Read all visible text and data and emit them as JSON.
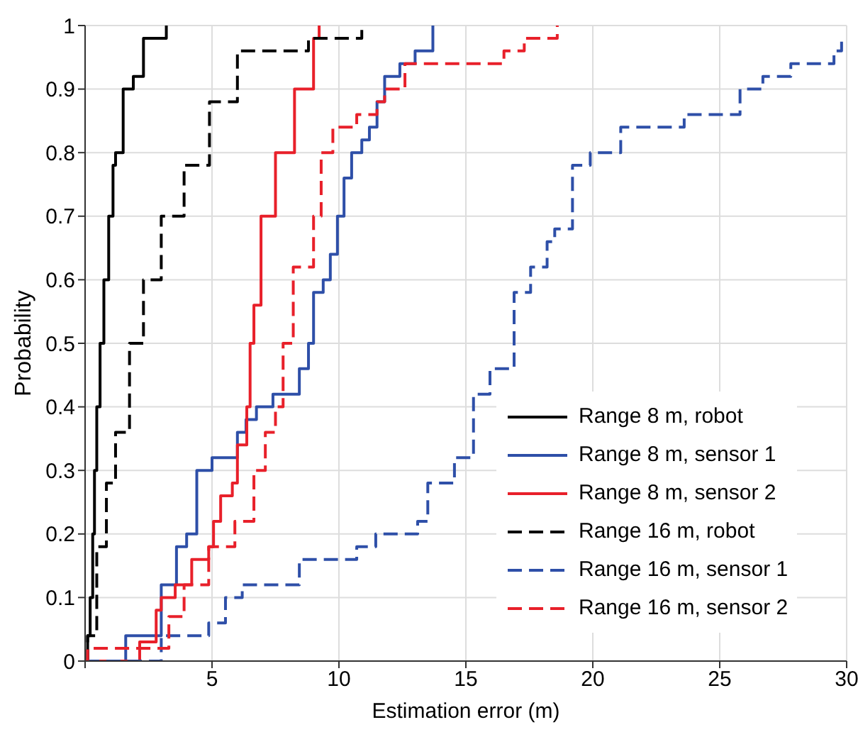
{
  "chart_data": {
    "type": "step",
    "xlabel": "Estimation error (m)",
    "ylabel": "Probability",
    "xlim": [
      0,
      30
    ],
    "ylim": [
      0,
      1
    ],
    "xticks": [
      {
        "value": 0,
        "label": null
      },
      5,
      10,
      15,
      20,
      25,
      30
    ],
    "yticks": [
      0,
      0.1,
      0.2,
      0.3,
      0.4,
      0.5,
      0.6,
      0.7,
      0.8,
      0.9,
      1
    ],
    "grid": true,
    "legend": "bottom right",
    "marker": "none",
    "series": [
      {
        "name": "Range 8 m, robot",
        "color": "#000000",
        "line_style": "solid",
        "x": [
          0,
          0.1,
          0.2,
          0.3,
          0.37,
          0.46,
          0.59,
          0.74,
          0.93,
          1.1,
          1.2,
          1.5,
          1.9,
          2.3,
          3.2
        ],
        "values": [
          0,
          0.04,
          0.1,
          0.2,
          0.3,
          0.4,
          0.5,
          0.6,
          0.7,
          0.78,
          0.8,
          0.9,
          0.92,
          0.98,
          1
        ]
      },
      {
        "name": "Range 8 m, sensor 1",
        "color": "#2e4fa8",
        "line_style": "solid",
        "x": [
          0,
          1.6,
          3.0,
          3.6,
          4.0,
          4.4,
          5.0,
          6.0,
          6.34,
          6.75,
          7.4,
          8.44,
          8.8,
          9.0,
          9.38,
          9.66,
          9.94,
          10.2,
          10.5,
          10.9,
          11.2,
          11.5,
          11.8,
          12.4,
          13.0,
          13.7
        ],
        "values": [
          0,
          0.04,
          0.12,
          0.18,
          0.2,
          0.3,
          0.32,
          0.36,
          0.38,
          0.4,
          0.42,
          0.46,
          0.5,
          0.58,
          0.6,
          0.64,
          0.7,
          0.76,
          0.8,
          0.82,
          0.84,
          0.88,
          0.92,
          0.94,
          0.96,
          1
        ]
      },
      {
        "name": "Range 8 m, sensor 2",
        "color": "#e8202a",
        "line_style": "solid",
        "x": [
          0,
          2.15,
          2.8,
          3.0,
          3.55,
          4.2,
          4.87,
          5.06,
          5.34,
          5.8,
          6.0,
          6.37,
          6.5,
          6.65,
          6.93,
          7.5,
          8.25,
          9.0,
          9.22
        ],
        "values": [
          0,
          0.03,
          0.08,
          0.1,
          0.12,
          0.16,
          0.18,
          0.22,
          0.26,
          0.28,
          0.34,
          0.4,
          0.5,
          0.56,
          0.7,
          0.8,
          0.9,
          0.98,
          1
        ]
      },
      {
        "name": "Range 16 m, robot",
        "color": "#000000",
        "line_style": "dashed",
        "x": [
          0,
          0.1,
          0.46,
          0.84,
          1.2,
          1.75,
          2.3,
          3.0,
          3.9,
          4.9,
          6.0,
          8.8,
          10.9
        ],
        "values": [
          0,
          0.04,
          0.18,
          0.28,
          0.36,
          0.5,
          0.6,
          0.7,
          0.78,
          0.88,
          0.96,
          0.98,
          1
        ]
      },
      {
        "name": "Range 16 m, sensor 1",
        "color": "#2e4fa8",
        "line_style": "dashed",
        "x": [
          0,
          3.0,
          4.87,
          5.53,
          6.19,
          8.44,
          10.7,
          11.45,
          13.1,
          13.5,
          14.55,
          15.3,
          15.95,
          16.9,
          17.55,
          18.2,
          18.5,
          19.2,
          19.9,
          21.1,
          23.6,
          25.8,
          26.7,
          27.8,
          29.5,
          29.8
        ],
        "values": [
          0,
          0.04,
          0.06,
          0.1,
          0.12,
          0.16,
          0.18,
          0.2,
          0.22,
          0.28,
          0.32,
          0.42,
          0.46,
          0.58,
          0.62,
          0.66,
          0.68,
          0.78,
          0.8,
          0.84,
          0.86,
          0.9,
          0.92,
          0.94,
          0.96,
          0.98
        ]
      },
      {
        "name": "Range 16 m, sensor 2",
        "color": "#e8202a",
        "line_style": "dashed",
        "x": [
          0,
          0.1,
          2.4,
          3.3,
          3.9,
          4.87,
          5.9,
          6.65,
          7.1,
          7.5,
          7.8,
          8.2,
          9.0,
          9.3,
          9.76,
          10.7,
          11.5,
          11.8,
          12.6,
          16.5,
          17.3,
          18.6
        ],
        "values": [
          0,
          0.02,
          0.02,
          0.07,
          0.12,
          0.18,
          0.22,
          0.3,
          0.36,
          0.4,
          0.5,
          0.62,
          0.7,
          0.8,
          0.84,
          0.86,
          0.88,
          0.9,
          0.94,
          0.96,
          0.98,
          1
        ]
      }
    ]
  }
}
